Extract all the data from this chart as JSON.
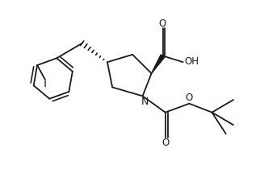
{
  "bg_color": "#ffffff",
  "line_color": "#1a1a1a",
  "figsize": [
    3.22,
    2.2
  ],
  "dpi": 100,
  "lw": 1.3,
  "xlim": [
    0,
    10
  ],
  "ylim": [
    0,
    7
  ]
}
